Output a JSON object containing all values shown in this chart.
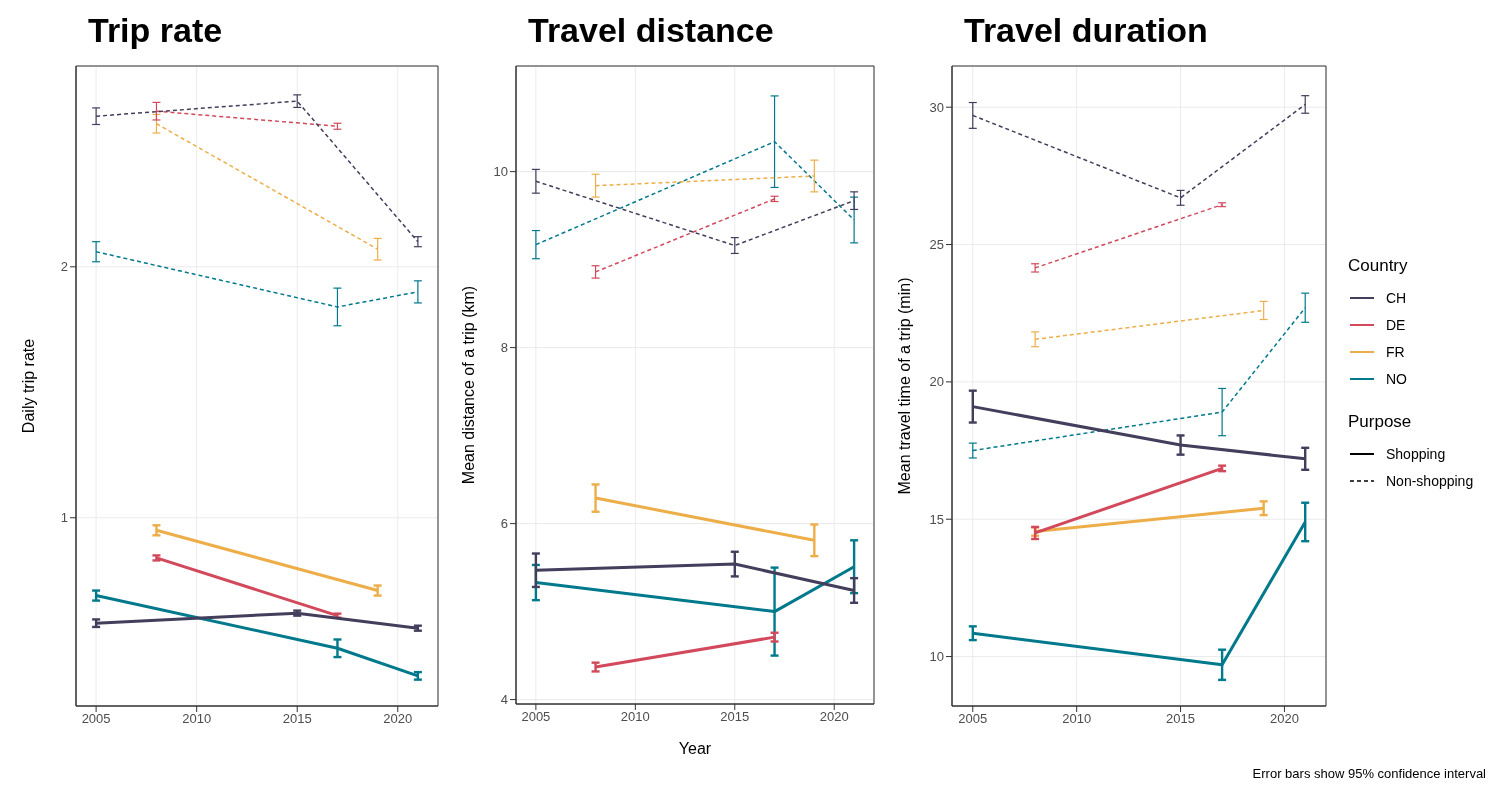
{
  "chart_data": [
    {
      "type": "line",
      "title": "Trip rate",
      "ylabel": "Daily trip rate",
      "x": [
        2005,
        2008,
        2015,
        2017,
        2019,
        2021
      ],
      "xlim": [
        2004,
        2022
      ],
      "xticks": [
        2005,
        2010,
        2015,
        2020
      ],
      "ylim": [
        0.25,
        2.8
      ],
      "yticks": [
        1,
        2
      ],
      "grid": true,
      "marker": "none",
      "series": [
        {
          "color": "#433e5c",
          "line_style": "solid",
          "values": [
            0.58,
            null,
            0.62,
            null,
            null,
            0.56
          ],
          "errors": [
            0.015,
            null,
            0.01,
            null,
            null,
            0.01
          ]
        },
        {
          "color": "#d1495b",
          "line_style": "solid",
          "values": [
            null,
            0.84,
            null,
            0.61,
            null,
            null
          ],
          "errors": [
            null,
            0.01,
            null,
            0.008,
            null,
            null
          ]
        },
        {
          "color": "#edae49",
          "line_style": "solid",
          "values": [
            null,
            0.95,
            null,
            null,
            0.71,
            null
          ],
          "errors": [
            null,
            0.02,
            null,
            null,
            0.02,
            null
          ]
        },
        {
          "color": "#00798c",
          "line_style": "solid",
          "values": [
            0.69,
            null,
            null,
            0.48,
            null,
            0.37
          ],
          "errors": [
            0.02,
            null,
            null,
            0.035,
            null,
            0.015
          ]
        },
        {
          "color": "#433e5c",
          "line_style": "dashed",
          "values": [
            2.6,
            null,
            2.66,
            null,
            null,
            2.1
          ],
          "errors": [
            0.033,
            null,
            0.025,
            null,
            null,
            0.02
          ]
        },
        {
          "color": "#d1495b",
          "line_style": "dashed",
          "values": [
            null,
            2.62,
            null,
            2.56,
            null,
            null
          ],
          "errors": [
            null,
            0.035,
            null,
            0.012,
            null,
            null
          ]
        },
        {
          "color": "#edae49",
          "line_style": "dashed",
          "values": [
            null,
            2.57,
            null,
            null,
            2.07,
            null
          ],
          "errors": [
            null,
            0.037,
            null,
            null,
            0.043,
            null
          ]
        },
        {
          "color": "#00798c",
          "line_style": "dashed",
          "values": [
            2.06,
            null,
            null,
            1.84,
            null,
            1.9
          ],
          "errors": [
            0.04,
            null,
            null,
            0.075,
            null,
            0.044
          ]
        }
      ]
    },
    {
      "type": "line",
      "title": "Travel distance",
      "xlabel": "Year",
      "ylabel": "Mean distance of a trip (km)",
      "x": [
        2005,
        2008,
        2015,
        2017,
        2019,
        2021
      ],
      "xlim": [
        2004,
        2022
      ],
      "xticks": [
        2005,
        2010,
        2015,
        2020
      ],
      "ylim": [
        3.95,
        11.2
      ],
      "yticks": [
        4,
        6,
        8,
        10
      ],
      "grid": true,
      "marker": "none",
      "series": [
        {
          "color": "#433e5c",
          "line_style": "solid",
          "values": [
            5.47,
            null,
            5.54,
            null,
            null,
            5.24
          ],
          "errors": [
            0.19,
            null,
            0.14,
            null,
            null,
            0.14
          ]
        },
        {
          "color": "#d1495b",
          "line_style": "solid",
          "values": [
            null,
            4.37,
            null,
            4.71,
            null,
            null
          ],
          "errors": [
            null,
            0.05,
            null,
            0.05,
            null,
            null
          ]
        },
        {
          "color": "#edae49",
          "line_style": "solid",
          "values": [
            null,
            6.29,
            null,
            null,
            5.81,
            null
          ],
          "errors": [
            null,
            0.155,
            null,
            null,
            0.18,
            null
          ]
        },
        {
          "color": "#00798c",
          "line_style": "solid",
          "values": [
            5.33,
            null,
            null,
            5.0,
            null,
            5.51
          ],
          "errors": [
            0.2,
            null,
            null,
            0.5,
            null,
            0.3
          ]
        },
        {
          "color": "#433e5c",
          "line_style": "dashed",
          "values": [
            9.89,
            null,
            9.16,
            null,
            null,
            9.67
          ],
          "errors": [
            0.135,
            null,
            0.09,
            null,
            null,
            0.1
          ]
        },
        {
          "color": "#d1495b",
          "line_style": "dashed",
          "values": [
            null,
            8.86,
            null,
            9.69,
            null,
            null
          ],
          "errors": [
            null,
            0.07,
            null,
            0.03,
            null,
            null
          ]
        },
        {
          "color": "#edae49",
          "line_style": "dashed",
          "values": [
            null,
            9.84,
            null,
            null,
            9.95,
            null
          ],
          "errors": [
            null,
            0.13,
            null,
            null,
            0.18,
            null
          ]
        },
        {
          "color": "#00798c",
          "line_style": "dashed",
          "values": [
            9.17,
            null,
            null,
            10.34,
            null,
            9.45
          ],
          "errors": [
            0.16,
            null,
            null,
            0.52,
            null,
            0.26
          ]
        }
      ]
    },
    {
      "type": "line",
      "title": "Travel duration",
      "ylabel": "Mean travel time of a trip (min)",
      "x": [
        2005,
        2008,
        2015,
        2017,
        2019,
        2021
      ],
      "xlim": [
        2004,
        2022
      ],
      "xticks": [
        2005,
        2010,
        2015,
        2020
      ],
      "ylim": [
        8.2,
        31.5
      ],
      "yticks": [
        10,
        15,
        20,
        25,
        30
      ],
      "grid": true,
      "marker": "none",
      "legend": "right",
      "legend_title": "Country",
      "annotations": [
        "Purpose",
        "Shopping",
        "Non-shopping",
        "Error bars show 95% confidence interval"
      ],
      "series": [
        {
          "name": "CH",
          "color": "#433e5c",
          "line_style": "solid",
          "values": [
            19.1,
            null,
            17.7,
            null,
            null,
            17.2
          ],
          "errors": [
            0.58,
            null,
            0.35,
            null,
            null,
            0.4
          ]
        },
        {
          "name": "DE",
          "color": "#d1495b",
          "line_style": "solid",
          "values": [
            null,
            14.5,
            null,
            16.85,
            null,
            null
          ],
          "errors": [
            null,
            0.22,
            null,
            0.1,
            null,
            null
          ]
        },
        {
          "name": "FR",
          "color": "#edae49",
          "line_style": "solid",
          "values": [
            null,
            14.55,
            null,
            null,
            15.4,
            null
          ],
          "errors": [
            null,
            0.15,
            null,
            null,
            0.25,
            null
          ]
        },
        {
          "name": "NO",
          "color": "#00798c",
          "line_style": "solid",
          "values": [
            10.85,
            null,
            null,
            9.7,
            null,
            14.9
          ],
          "errors": [
            0.25,
            null,
            null,
            0.55,
            null,
            0.7
          ]
        },
        {
          "color": "#433e5c",
          "line_style": "dashed",
          "values": [
            29.7,
            null,
            26.7,
            null,
            null,
            30.1
          ],
          "errors": [
            0.47,
            null,
            0.27,
            null,
            null,
            0.32
          ]
        },
        {
          "color": "#d1495b",
          "line_style": "dashed",
          "values": [
            null,
            24.15,
            null,
            26.45,
            null,
            null
          ],
          "errors": [
            null,
            0.15,
            null,
            0.07,
            null,
            null
          ]
        },
        {
          "color": "#edae49",
          "line_style": "dashed",
          "values": [
            null,
            21.55,
            null,
            null,
            22.6,
            null
          ],
          "errors": [
            null,
            0.27,
            null,
            null,
            0.33,
            null
          ]
        },
        {
          "color": "#00798c",
          "line_style": "dashed",
          "values": [
            17.5,
            null,
            null,
            18.9,
            null,
            22.7
          ],
          "errors": [
            0.27,
            null,
            null,
            0.86,
            null,
            0.53
          ]
        }
      ]
    }
  ]
}
